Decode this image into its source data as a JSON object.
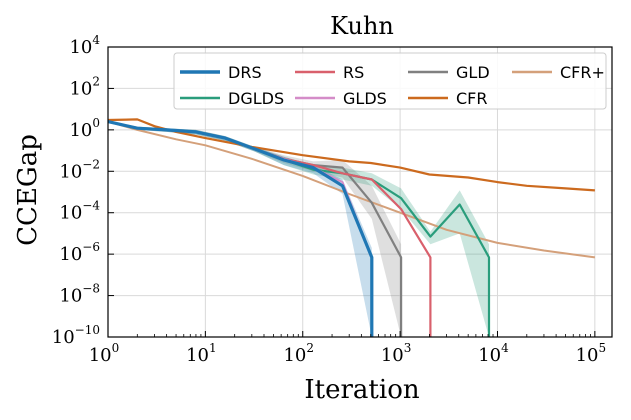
{
  "chart_data": {
    "type": "line",
    "title": "Kuhn",
    "xlabel": "Iteration",
    "ylabel": "CCEGap",
    "xscale": "log",
    "yscale": "log",
    "xlim": [
      1,
      150000
    ],
    "ylim": [
      1e-10,
      10000
    ],
    "grid": true,
    "legend_position": "top-right",
    "x_ticks": [
      {
        "value": 1,
        "base": "10",
        "exp": "0"
      },
      {
        "value": 10,
        "base": "10",
        "exp": "1"
      },
      {
        "value": 100,
        "base": "10",
        "exp": "2"
      },
      {
        "value": 1000,
        "base": "10",
        "exp": "3"
      },
      {
        "value": 10000,
        "base": "10",
        "exp": "4"
      },
      {
        "value": 100000,
        "base": "10",
        "exp": "5"
      }
    ],
    "y_ticks": [
      {
        "value": 1e-10,
        "base": "10",
        "exp": "−10"
      },
      {
        "value": 1e-08,
        "base": "10",
        "exp": "−8"
      },
      {
        "value": 1e-06,
        "base": "10",
        "exp": "−6"
      },
      {
        "value": 0.0001,
        "base": "10",
        "exp": "−4"
      },
      {
        "value": 0.01,
        "base": "10",
        "exp": "−2"
      },
      {
        "value": 1,
        "base": "10",
        "exp": "0"
      },
      {
        "value": 100,
        "base": "10",
        "exp": "2"
      },
      {
        "value": 10000,
        "base": "10",
        "exp": "4"
      }
    ],
    "series": [
      {
        "name": "CFR+",
        "color": "#d4a07a",
        "width": 2,
        "x": [
          1,
          2,
          5,
          10,
          30,
          100,
          300,
          1000,
          3000,
          10000,
          30000,
          100000
        ],
        "y": [
          2.5,
          1.0,
          0.35,
          0.18,
          0.04,
          0.006,
          0.0008,
          0.0001,
          1.5e-05,
          3.5e-06,
          1.5e-06,
          7e-07
        ]
      },
      {
        "name": "CFR",
        "color": "#cc6a1e",
        "width": 2.2,
        "x": [
          1,
          2,
          3,
          5,
          10,
          30,
          100,
          300,
          500,
          1000,
          2000,
          5000,
          10000,
          20000,
          50000,
          100000
        ],
        "y": [
          3,
          3.2,
          1.5,
          0.8,
          0.4,
          0.15,
          0.06,
          0.03,
          0.025,
          0.015,
          0.007,
          0.005,
          0.003,
          0.002,
          0.0015,
          0.0012
        ]
      },
      {
        "name": "GLD",
        "color": "#808080",
        "width": 2.2,
        "x": [
          1,
          2,
          4,
          8,
          16,
          32,
          64,
          128,
          256,
          512,
          1024,
          1024
        ],
        "y": [
          2.5,
          1.2,
          1.0,
          0.8,
          0.4,
          0.12,
          0.04,
          0.02,
          0.015,
          0.0003,
          7e-07,
          1e-10
        ],
        "band_lo": [
          2.2,
          1.0,
          0.8,
          0.6,
          0.3,
          0.09,
          0.025,
          0.01,
          0.005,
          5e-05,
          1e-10,
          1e-10
        ],
        "band_hi": [
          2.8,
          1.4,
          1.2,
          1.0,
          0.5,
          0.15,
          0.06,
          0.03,
          0.035,
          0.002,
          3e-06,
          1e-10
        ]
      },
      {
        "name": "DGLDS",
        "color": "#2a9d7c",
        "width": 2.2,
        "x": [
          1,
          2,
          4,
          8,
          16,
          32,
          64,
          128,
          256,
          512,
          1024,
          2048,
          4096,
          8192,
          8192
        ],
        "y": [
          2.5,
          1.2,
          1.0,
          0.8,
          0.4,
          0.12,
          0.035,
          0.012,
          0.008,
          0.004,
          0.0005,
          7e-06,
          0.00025,
          7e-07,
          1e-10
        ],
        "band_lo": [
          2.2,
          1.0,
          0.8,
          0.6,
          0.3,
          0.09,
          0.02,
          0.007,
          0.004,
          0.002,
          0.00015,
          3e-06,
          1e-05,
          1e-10,
          1e-10
        ],
        "band_hi": [
          2.8,
          1.4,
          1.2,
          1.0,
          0.5,
          0.15,
          0.05,
          0.02,
          0.015,
          0.008,
          0.0015,
          1.2e-05,
          0.0012,
          3e-06,
          1e-10
        ]
      },
      {
        "name": "RS",
        "color": "#d9606c",
        "width": 2.2,
        "x": [
          1,
          2,
          4,
          8,
          16,
          32,
          64,
          128,
          256,
          512,
          1024,
          2048,
          2048
        ],
        "y": [
          2.5,
          1.2,
          1.0,
          0.8,
          0.4,
          0.12,
          0.04,
          0.02,
          0.008,
          0.004,
          0.00015,
          7e-07,
          1e-10
        ]
      },
      {
        "name": "GLDS",
        "color": "#d48cc8",
        "width": 2,
        "x": [
          1,
          2,
          4,
          8,
          16,
          32,
          64,
          128,
          256,
          512,
          512
        ],
        "y": [
          2.5,
          1.2,
          1.0,
          0.8,
          0.4,
          0.12,
          0.04,
          0.015,
          0.003,
          7e-07,
          1e-10
        ]
      },
      {
        "name": "DRS",
        "color": "#1f77b4",
        "width": 3.2,
        "x": [
          1,
          2,
          4,
          8,
          16,
          32,
          64,
          128,
          256,
          512,
          512
        ],
        "y": [
          2.5,
          1.2,
          1.0,
          0.8,
          0.4,
          0.12,
          0.035,
          0.015,
          0.002,
          7e-07,
          1e-10
        ],
        "band_lo": [
          2.2,
          1.0,
          0.8,
          0.6,
          0.3,
          0.09,
          0.02,
          0.008,
          0.0008,
          1e-10,
          1e-10
        ],
        "band_hi": [
          2.8,
          1.4,
          1.2,
          1.0,
          0.5,
          0.15,
          0.05,
          0.02,
          0.004,
          2e-06,
          1e-10
        ]
      }
    ],
    "legend": [
      {
        "name": "DRS",
        "color": "#1f77b4",
        "width": 3.5
      },
      {
        "name": "RS",
        "color": "#d9606c",
        "width": 2.5
      },
      {
        "name": "GLD",
        "color": "#808080",
        "width": 2.5
      },
      {
        "name": "CFR+",
        "color": "#d4a07a",
        "width": 2.5
      },
      {
        "name": "DGLDS",
        "color": "#2a9d7c",
        "width": 2.5
      },
      {
        "name": "GLDS",
        "color": "#d48cc8",
        "width": 2.5
      },
      {
        "name": "CFR",
        "color": "#cc6a1e",
        "width": 2.5
      }
    ]
  }
}
